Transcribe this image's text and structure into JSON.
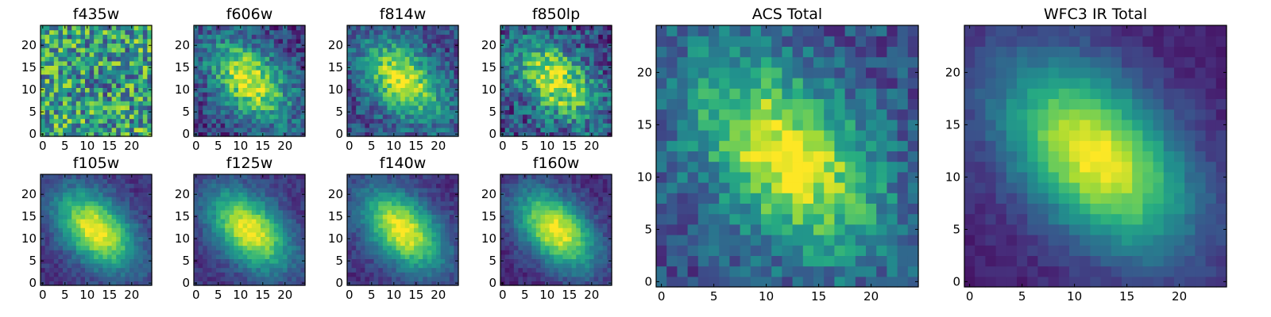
{
  "chart_data": [
    {
      "type": "heatmap",
      "title": "f435w",
      "x_ticks": [
        0,
        5,
        10,
        15,
        20
      ],
      "y_ticks": [
        0,
        5,
        10,
        15,
        20
      ],
      "xlim": [
        0,
        24
      ],
      "ylim": [
        0,
        24
      ],
      "grid": false,
      "colormap": "viridis",
      "centroid": [
        12,
        12
      ],
      "peak_level": 0.52,
      "background_level": 0.58,
      "noise_level": 0.36,
      "shape": "round"
    },
    {
      "type": "heatmap",
      "title": "f606w",
      "x_ticks": [
        0,
        5,
        10,
        15,
        20
      ],
      "y_ticks": [
        0,
        5,
        10,
        15,
        20
      ],
      "xlim": [
        0,
        24
      ],
      "ylim": [
        0,
        24
      ],
      "grid": false,
      "colormap": "viridis",
      "centroid": [
        12,
        12
      ],
      "peak_level": 0.95,
      "background_level": 0.2,
      "noise_level": 0.2,
      "shape": "elliptical, tilted"
    },
    {
      "type": "heatmap",
      "title": "f814w",
      "x_ticks": [
        0,
        5,
        10,
        15,
        20
      ],
      "y_ticks": [
        0,
        5,
        10,
        15,
        20
      ],
      "xlim": [
        0,
        24
      ],
      "ylim": [
        0,
        24
      ],
      "grid": false,
      "colormap": "viridis",
      "centroid": [
        12,
        12
      ],
      "peak_level": 0.95,
      "background_level": 0.22,
      "noise_level": 0.18,
      "shape": "elliptical, tilted"
    },
    {
      "type": "heatmap",
      "title": "f850lp",
      "x_ticks": [
        0,
        5,
        10,
        15,
        20
      ],
      "y_ticks": [
        0,
        5,
        10,
        15,
        20
      ],
      "xlim": [
        0,
        24
      ],
      "ylim": [
        0,
        24
      ],
      "grid": false,
      "colormap": "viridis",
      "centroid": [
        12,
        12
      ],
      "peak_level": 0.95,
      "background_level": 0.22,
      "noise_level": 0.24,
      "shape": "elliptical, tilted"
    },
    {
      "type": "heatmap",
      "title": "ACS Total",
      "x_ticks": [
        0,
        5,
        10,
        15,
        20
      ],
      "y_ticks": [
        0,
        5,
        10,
        15,
        20
      ],
      "xlim": [
        0,
        24
      ],
      "ylim": [
        0,
        24
      ],
      "grid": false,
      "colormap": "viridis",
      "centroid": [
        12,
        12
      ],
      "peak_level": 1.0,
      "background_level": 0.25,
      "noise_level": 0.16,
      "shape": "elliptical, tilted"
    },
    {
      "type": "heatmap",
      "title": "f105w",
      "x_ticks": [
        0,
        5,
        10,
        15,
        20
      ],
      "y_ticks": [
        0,
        5,
        10,
        15,
        20
      ],
      "xlim": [
        0,
        24
      ],
      "ylim": [
        0,
        24
      ],
      "grid": false,
      "colormap": "viridis",
      "centroid": [
        12,
        12
      ],
      "peak_level": 1.0,
      "background_level": 0.15,
      "noise_level": 0.08,
      "shape": "elliptical, tilted"
    },
    {
      "type": "heatmap",
      "title": "f125w",
      "x_ticks": [
        0,
        5,
        10,
        15,
        20
      ],
      "y_ticks": [
        0,
        5,
        10,
        15,
        20
      ],
      "xlim": [
        0,
        24
      ],
      "ylim": [
        0,
        24
      ],
      "grid": false,
      "colormap": "viridis",
      "centroid": [
        12,
        12
      ],
      "peak_level": 1.0,
      "background_level": 0.15,
      "noise_level": 0.08,
      "shape": "elliptical, tilted"
    },
    {
      "type": "heatmap",
      "title": "f140w",
      "x_ticks": [
        0,
        5,
        10,
        15,
        20
      ],
      "y_ticks": [
        0,
        5,
        10,
        15,
        20
      ],
      "xlim": [
        0,
        24
      ],
      "ylim": [
        0,
        24
      ],
      "grid": false,
      "colormap": "viridis",
      "centroid": [
        12,
        12
      ],
      "peak_level": 1.0,
      "background_level": 0.15,
      "noise_level": 0.08,
      "shape": "elliptical, tilted"
    },
    {
      "type": "heatmap",
      "title": "f160w",
      "x_ticks": [
        0,
        5,
        10,
        15,
        20
      ],
      "y_ticks": [
        0,
        5,
        10,
        15,
        20
      ],
      "xlim": [
        0,
        24
      ],
      "ylim": [
        0,
        24
      ],
      "grid": false,
      "colormap": "viridis",
      "centroid": [
        12,
        12
      ],
      "peak_level": 1.0,
      "background_level": 0.12,
      "noise_level": 0.08,
      "shape": "elliptical, tilted"
    },
    {
      "type": "heatmap",
      "title": "WFC3 IR Total",
      "x_ticks": [
        0,
        5,
        10,
        15,
        20
      ],
      "y_ticks": [
        0,
        5,
        10,
        15,
        20
      ],
      "xlim": [
        0,
        24
      ],
      "ylim": [
        0,
        24
      ],
      "grid": false,
      "colormap": "viridis",
      "centroid": [
        12,
        12
      ],
      "peak_level": 1.0,
      "background_level": 0.1,
      "noise_level": 0.05,
      "shape": "elliptical, tilted"
    }
  ]
}
